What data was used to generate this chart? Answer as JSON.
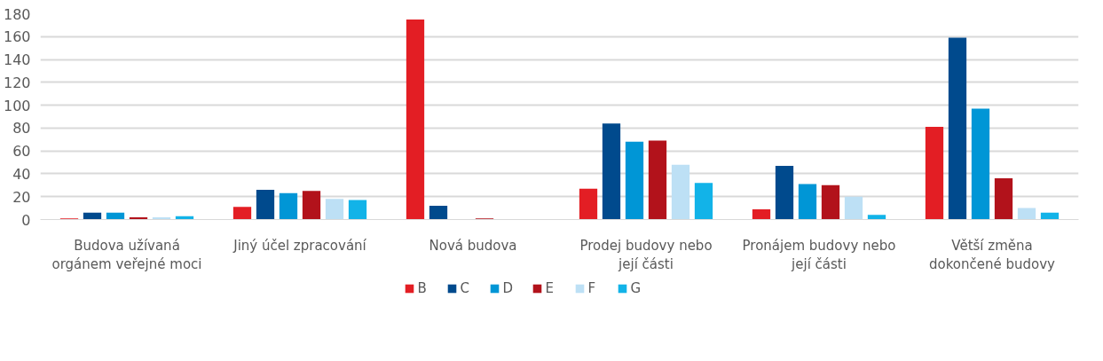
{
  "chart_data": {
    "type": "bar",
    "categories": [
      "Budova užívaná orgánem veřejné moci",
      "Jiný účel zpracování",
      "Nová budova",
      "Prodej budovy nebo její části",
      "Pronájem budovy nebo její části",
      "Větší změna dokončené budovy"
    ],
    "series": [
      {
        "name": "B",
        "color": "#e31e24",
        "values": [
          1,
          11,
          175,
          27,
          9,
          81
        ]
      },
      {
        "name": "C",
        "color": "#004a8d",
        "values": [
          6,
          26,
          12,
          84,
          47,
          159
        ]
      },
      {
        "name": "D",
        "color": "#0096d6",
        "values": [
          6,
          23,
          0,
          68,
          31,
          97
        ]
      },
      {
        "name": "E",
        "color": "#b2121b",
        "values": [
          2,
          25,
          1,
          69,
          30,
          36
        ]
      },
      {
        "name": "F",
        "color": "#bde0f5",
        "values": [
          2,
          18,
          0,
          48,
          20,
          10
        ]
      },
      {
        "name": "G",
        "color": "#12b3e8",
        "values": [
          3,
          17,
          0,
          32,
          4,
          6
        ]
      }
    ],
    "ylim": [
      0,
      180
    ],
    "yticks": [
      0,
      20,
      40,
      60,
      80,
      100,
      120,
      140,
      160,
      180
    ],
    "grid": "y",
    "legend": "bottom"
  }
}
